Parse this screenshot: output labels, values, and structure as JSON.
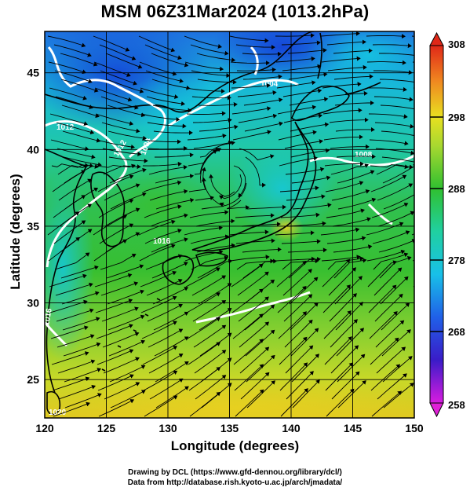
{
  "title": "MSM 06Z31Mar2024 (1013.2hPa)",
  "xlabel": "Longitude (degrees)",
  "ylabel": "Latitude  (degrees)",
  "x_ticks": [
    "120",
    "125",
    "130",
    "135",
    "140",
    "145",
    "150"
  ],
  "y_ticks": [
    "25",
    "30",
    "35",
    "40",
    "45"
  ],
  "colorbar_ticks": [
    "308",
    "298",
    "288",
    "278",
    "268",
    "258"
  ],
  "contour_labels": [
    "1004",
    "1004",
    "1012",
    "1012",
    "1008",
    "1016",
    "1020",
    "1016"
  ],
  "credit_line1": "Drawing by DCL (https://www.gfd-dennou.org/library/dcl/)",
  "credit_line2": "Data from http://database.rish.kyoto-u.ac.jp/arch/jmadata/",
  "map": {
    "lon_range": [
      120,
      150
    ],
    "lat_range": [
      22.5,
      47.7
    ],
    "colorbar_range": [
      258,
      308
    ],
    "variable": "surface temperature (K) with wind streamlines and sea-level pressure contours (hPa)"
  },
  "colors": {
    "cold": "#1c3fd8",
    "cool": "#18c9d0",
    "mild": "#38c030",
    "warm": "#d8e028",
    "hot": "#e07818",
    "contour": "#ffffff",
    "coast": "#000000"
  }
}
